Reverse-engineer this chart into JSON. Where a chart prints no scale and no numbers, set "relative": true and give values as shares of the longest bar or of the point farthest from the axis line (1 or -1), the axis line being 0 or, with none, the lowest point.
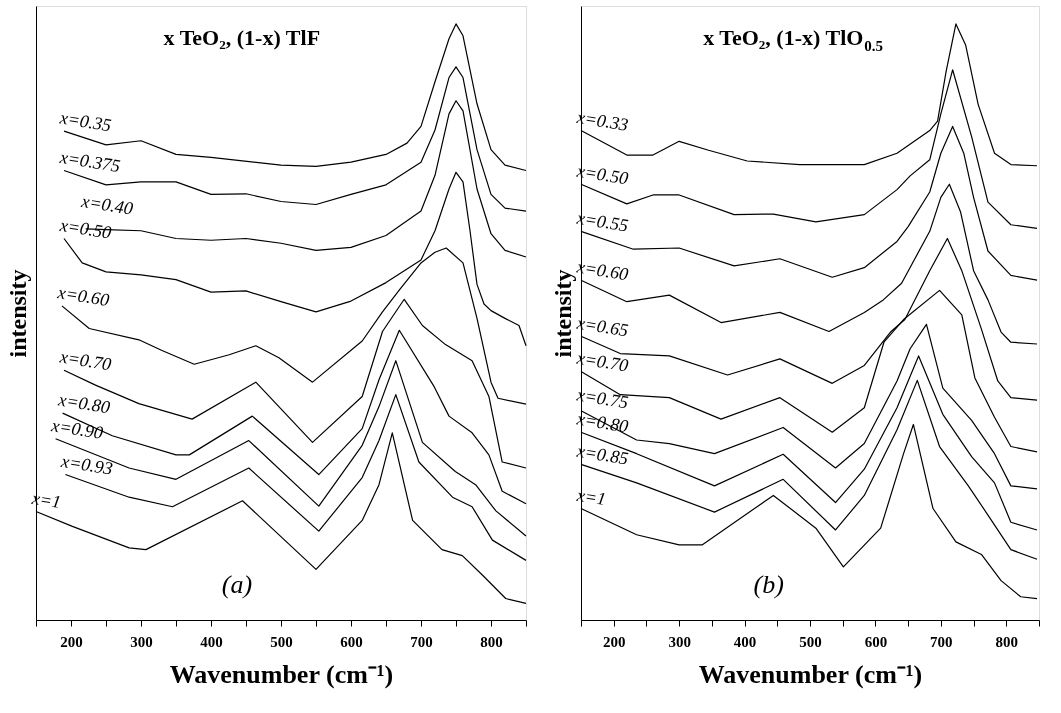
{
  "chart_data": [
    {
      "type": "line",
      "title": "x TeO₂, (1-x) TlF",
      "xlabel": "Wavenumber (cm⁻¹)",
      "ylabel": "intensity",
      "relative": true,
      "line_style": "solid",
      "xlim": [
        150,
        850
      ],
      "xticks": [
        {
          "value": 150,
          "label": null
        },
        200,
        {
          "value": 250,
          "label": null
        },
        300,
        {
          "value": 350,
          "label": null
        },
        400,
        {
          "value": 450,
          "label": null
        },
        500,
        {
          "value": 550,
          "label": null
        },
        600,
        {
          "value": 650,
          "label": null
        },
        700,
        {
          "value": 750,
          "label": null
        },
        800,
        {
          "value": 850,
          "label": null
        }
      ],
      "annotations": [
        "(a)"
      ],
      "series": [
        {
          "name": "x=0.35",
          "color": "#000000",
          "x": [
            190,
            250,
            300,
            350,
            400,
            500,
            550,
            600,
            650,
            680,
            700,
            720,
            740,
            750,
            760,
            780,
            800,
            820,
            850
          ],
          "values": [
            0.82,
            0.797,
            0.804,
            0.781,
            0.776,
            0.763,
            0.761,
            0.768,
            0.781,
            0.8,
            0.828,
            0.903,
            0.975,
            1.0,
            0.98,
            0.866,
            0.789,
            0.763,
            0.754
          ]
        },
        {
          "name": "x=0.375",
          "color": "#000000",
          "x": [
            190,
            250,
            300,
            350,
            400,
            450,
            500,
            550,
            600,
            650,
            700,
            720,
            740,
            750,
            760,
            780,
            800,
            820,
            850
          ],
          "values": [
            0.754,
            0.73,
            0.735,
            0.735,
            0.714,
            0.715,
            0.702,
            0.697,
            0.714,
            0.73,
            0.768,
            0.822,
            0.91,
            0.928,
            0.91,
            0.789,
            0.714,
            0.691,
            0.686
          ]
        },
        {
          "name": "x=0.40",
          "color": "#000000",
          "x": [
            221,
            250,
            300,
            350,
            400,
            450,
            500,
            550,
            600,
            650,
            700,
            720,
            740,
            750,
            760,
            780,
            800,
            820,
            850
          ],
          "values": [
            0.656,
            0.655,
            0.653,
            0.64,
            0.637,
            0.64,
            0.632,
            0.62,
            0.625,
            0.645,
            0.686,
            0.746,
            0.849,
            0.871,
            0.854,
            0.723,
            0.648,
            0.62,
            0.609
          ]
        },
        {
          "name": "x=0.50",
          "color": "#000000",
          "x": [
            190,
            216,
            250,
            300,
            350,
            400,
            450,
            500,
            550,
            600,
            650,
            700,
            720,
            740,
            750,
            760,
            770,
            780,
            790,
            800,
            820,
            840,
            850
          ],
          "values": [
            0.64,
            0.599,
            0.584,
            0.579,
            0.571,
            0.55,
            0.552,
            0.534,
            0.517,
            0.535,
            0.566,
            0.604,
            0.653,
            0.723,
            0.751,
            0.735,
            0.653,
            0.563,
            0.53,
            0.519,
            0.506,
            0.494,
            0.46
          ]
        },
        {
          "name": "x=0.60",
          "color": "#000000",
          "x": [
            187,
            226,
            297,
            330,
            376,
            426,
            464,
            497,
            545,
            616,
            645,
            670,
            700,
            720,
            736,
            760,
            780,
            800,
            810,
            850
          ],
          "values": [
            0.527,
            0.489,
            0.47,
            0.452,
            0.429,
            0.445,
            0.46,
            0.44,
            0.399,
            0.468,
            0.517,
            0.555,
            0.599,
            0.617,
            0.624,
            0.599,
            0.506,
            0.399,
            0.372,
            0.362
          ]
        },
        {
          "name": "x=0.70",
          "color": "#000000",
          "x": [
            190,
            235,
            297,
            373,
            464,
            545,
            616,
            645,
            676,
            702,
            735,
            773,
            797,
            816,
            850
          ],
          "values": [
            0.419,
            0.394,
            0.363,
            0.337,
            0.399,
            0.298,
            0.375,
            0.484,
            0.538,
            0.494,
            0.462,
            0.435,
            0.375,
            0.265,
            0.255
          ]
        },
        {
          "name": "x=0.80",
          "color": "#000000",
          "x": [
            188,
            259,
            350,
            369,
            459,
            554,
            616,
            640,
            669,
            719,
            740,
            773,
            797,
            816,
            850
          ],
          "values": [
            0.347,
            0.309,
            0.277,
            0.277,
            0.342,
            0.244,
            0.321,
            0.403,
            0.486,
            0.391,
            0.342,
            0.314,
            0.277,
            0.216,
            0.195
          ]
        },
        {
          "name": "x=0.90",
          "color": "#000000",
          "x": [
            178,
            283,
            350,
            454,
            554,
            616,
            640,
            664,
            702,
            749,
            778,
            807,
            850
          ],
          "values": [
            0.304,
            0.255,
            0.236,
            0.301,
            0.191,
            0.293,
            0.358,
            0.435,
            0.298,
            0.249,
            0.227,
            0.183,
            0.141
          ]
        },
        {
          "name": "x=0.93",
          "color": "#000000",
          "x": [
            192,
            283,
            345,
            454,
            554,
            616,
            640,
            664,
            697,
            745,
            773,
            802,
            850
          ],
          "values": [
            0.244,
            0.206,
            0.19,
            0.255,
            0.149,
            0.239,
            0.301,
            0.378,
            0.265,
            0.206,
            0.19,
            0.134,
            0.1
          ]
        },
        {
          "name": "x=1",
          "color": "#000000",
          "x": [
            150,
            202,
            283,
            307,
            445,
            550,
            616,
            640,
            659,
            688,
            730,
            759,
            788,
            821,
            850
          ],
          "values": [
            0.182,
            0.157,
            0.121,
            0.118,
            0.2,
            0.085,
            0.167,
            0.227,
            0.314,
            0.167,
            0.118,
            0.108,
            0.075,
            0.036,
            0.028
          ]
        }
      ]
    },
    {
      "type": "line",
      "title": "x TeO₂, (1-x) TlO$_{0.5}$",
      "xlabel": "Wavenumber (cm⁻¹)",
      "ylabel": "intensity",
      "relative": true,
      "line_style": "solid",
      "xlim": [
        150,
        850
      ],
      "xticks": [
        {
          "value": 150,
          "label": null
        },
        200,
        {
          "value": 250,
          "label": null
        },
        300,
        {
          "value": 350,
          "label": null
        },
        400,
        {
          "value": 450,
          "label": null
        },
        500,
        {
          "value": 550,
          "label": null
        },
        600,
        {
          "value": 650,
          "label": null
        },
        700,
        {
          "value": 750,
          "label": null
        },
        800,
        {
          "value": 850,
          "label": null
        }
      ],
      "annotations": [
        "(b)"
      ],
      "series": [
        {
          "name": "x=0.33",
          "color": "#000000",
          "x": [
            150,
            220,
            260,
            300,
            345,
            404,
            484,
            583,
            633,
            683,
            695,
            708,
            723,
            738,
            757,
            782,
            807,
            847
          ],
          "values": [
            0.821,
            0.78,
            0.78,
            0.803,
            0.788,
            0.77,
            0.764,
            0.764,
            0.783,
            0.821,
            0.837,
            0.92,
            1.0,
            0.964,
            0.865,
            0.783,
            0.764,
            0.762
          ]
        },
        {
          "name": "x=0.50",
          "color": "#000000",
          "x": [
            150,
            220,
            260,
            300,
            384,
            444,
            509,
            583,
            633,
            653,
            683,
            700,
            718,
            747,
            772,
            807,
            847
          ],
          "values": [
            0.731,
            0.698,
            0.713,
            0.713,
            0.68,
            0.681,
            0.668,
            0.68,
            0.722,
            0.745,
            0.772,
            0.849,
            0.923,
            0.811,
            0.701,
            0.663,
            0.657
          ]
        },
        {
          "name": "x=0.55",
          "color": "#000000",
          "x": [
            150,
            230,
            300,
            384,
            454,
            534,
            583,
            633,
            650,
            683,
            700,
            718,
            735,
            750,
            772,
            807,
            847
          ],
          "values": [
            0.652,
            0.622,
            0.624,
            0.594,
            0.606,
            0.575,
            0.591,
            0.635,
            0.66,
            0.718,
            0.783,
            0.828,
            0.783,
            0.709,
            0.619,
            0.578,
            0.57
          ]
        },
        {
          "name": "x=0.60",
          "color": "#000000",
          "x": [
            150,
            220,
            285,
            364,
            454,
            529,
            583,
            612,
            640,
            683,
            700,
            713,
            730,
            750,
            772,
            792,
            807,
            847
          ],
          "values": [
            0.57,
            0.534,
            0.545,
            0.499,
            0.516,
            0.484,
            0.516,
            0.537,
            0.565,
            0.652,
            0.709,
            0.731,
            0.685,
            0.586,
            0.537,
            0.483,
            0.466,
            0.463
          ]
        },
        {
          "name": "x=0.65",
          "color": "#000000",
          "x": [
            150,
            210,
            285,
            374,
            454,
            534,
            583,
            623,
            645,
            683,
            710,
            732,
            762,
            787,
            807,
            847
          ],
          "values": [
            0.476,
            0.447,
            0.443,
            0.411,
            0.438,
            0.397,
            0.427,
            0.483,
            0.504,
            0.586,
            0.64,
            0.586,
            0.488,
            0.401,
            0.373,
            0.369
          ]
        },
        {
          "name": "x=0.70",
          "color": "#000000",
          "x": [
            150,
            210,
            285,
            364,
            454,
            534,
            583,
            613,
            643,
            698,
            732,
            752,
            782,
            807,
            847
          ],
          "values": [
            0.417,
            0.378,
            0.373,
            0.337,
            0.373,
            0.315,
            0.356,
            0.466,
            0.504,
            0.553,
            0.512,
            0.406,
            0.34,
            0.291,
            0.282
          ]
        },
        {
          "name": "x=0.75",
          "color": "#000000",
          "x": [
            150,
            235,
            285,
            354,
            459,
            539,
            583,
            633,
            653,
            678,
            703,
            747,
            782,
            807,
            847
          ],
          "values": [
            0.351,
            0.302,
            0.296,
            0.279,
            0.323,
            0.255,
            0.296,
            0.401,
            0.455,
            0.496,
            0.389,
            0.335,
            0.279,
            0.225,
            0.22
          ]
        },
        {
          "name": "x=0.80",
          "color": "#000000",
          "x": [
            150,
            235,
            354,
            459,
            539,
            583,
            633,
            666,
            703,
            747,
            782,
            807,
            847
          ],
          "values": [
            0.315,
            0.279,
            0.225,
            0.278,
            0.197,
            0.253,
            0.356,
            0.443,
            0.345,
            0.274,
            0.23,
            0.164,
            0.151
          ]
        },
        {
          "name": "x=0.85",
          "color": "#000000",
          "x": [
            150,
            235,
            354,
            459,
            539,
            583,
            633,
            664,
            698,
            742,
            772,
            807,
            847
          ],
          "values": [
            0.261,
            0.23,
            0.181,
            0.236,
            0.151,
            0.209,
            0.319,
            0.402,
            0.291,
            0.225,
            0.176,
            0.118,
            0.102
          ]
        },
        {
          "name": "x=1",
          "color": "#000000",
          "x": [
            150,
            235,
            300,
            335,
            444,
            509,
            551,
            608,
            643,
            658,
            688,
            723,
            762,
            792,
            822,
            847
          ],
          "values": [
            0.187,
            0.143,
            0.126,
            0.126,
            0.209,
            0.154,
            0.089,
            0.154,
            0.279,
            0.328,
            0.187,
            0.131,
            0.11,
            0.066,
            0.039,
            0.036
          ]
        }
      ]
    }
  ]
}
